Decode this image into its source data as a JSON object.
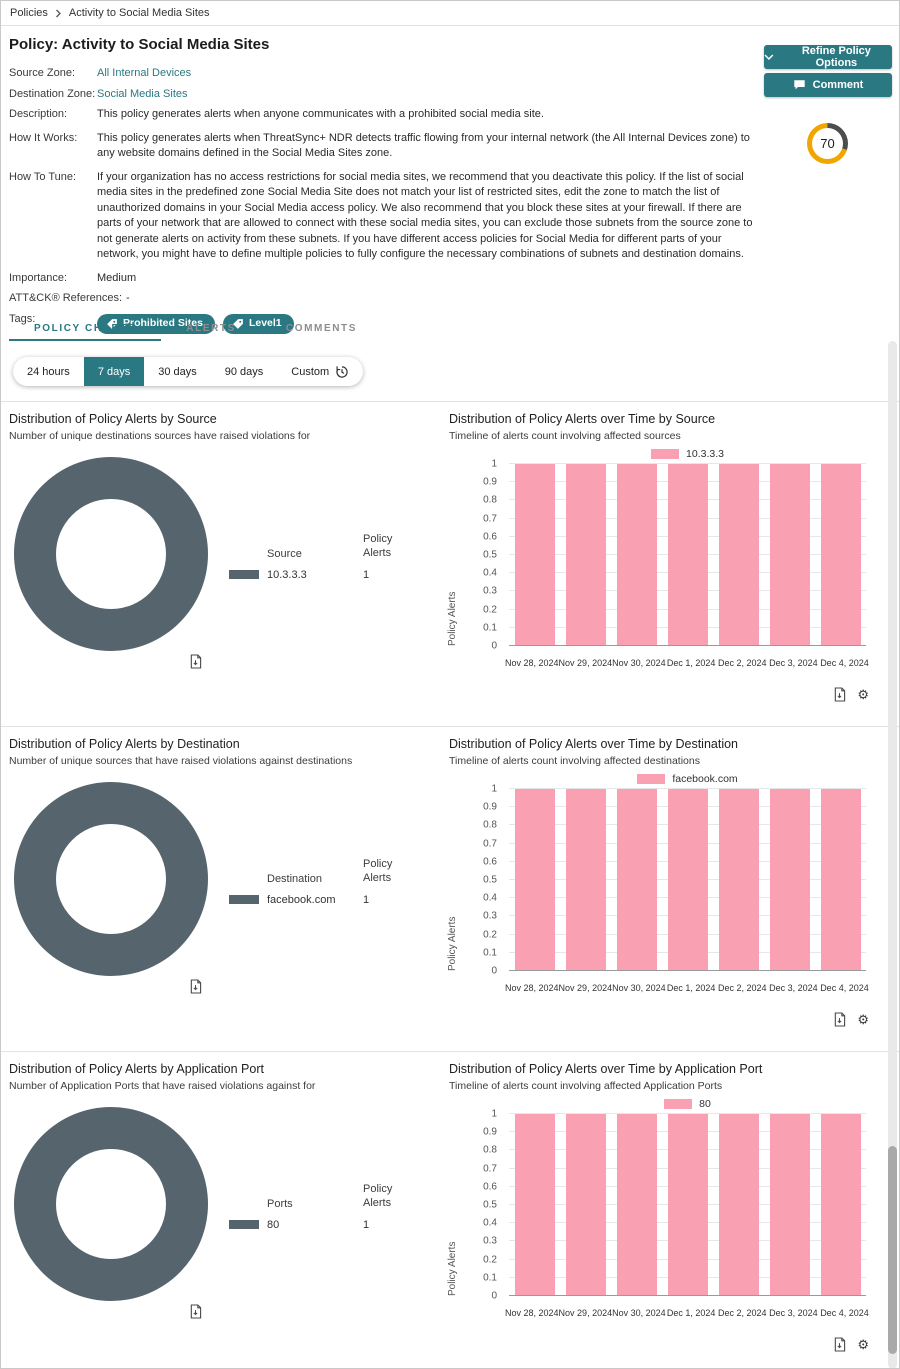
{
  "breadcrumb": {
    "root": "Policies",
    "current": "Activity to Social Media Sites"
  },
  "header": {
    "title": "Policy: Activity to Social Media Sites",
    "buttons": {
      "refine": "Refine Policy Options",
      "comment": "Comment"
    },
    "score": "70",
    "score_percent": 70,
    "details": {
      "source_zone": {
        "label": "Source Zone:",
        "value": "All Internal Devices"
      },
      "destination_zone": {
        "label": "Destination Zone:",
        "value": "Social Media Sites"
      },
      "description": {
        "label": "Description:",
        "value": "This policy generates alerts when anyone communicates with a prohibited social media site."
      },
      "how_it_works": {
        "label": "How It Works:",
        "value": "This policy generates alerts when ThreatSync+ NDR detects traffic flowing from your internal network (the All Internal Devices zone) to any website domains defined in the Social Media Sites zone."
      },
      "how_to_tune": {
        "label": "How To Tune:",
        "value": "If your organization has no access restrictions for social media sites, we recommend that you deactivate this policy. If the list of social media sites in the predefined zone Social Media Site does not match your list of restricted sites, edit the zone to match the list of unauthorized domains in your Social Media access policy. We also recommend that you block these sites at your firewall. If there are parts of your network that are allowed to connect with these social media sites, you can exclude those subnets from the source zone to not generate alerts on activity from these subnets. If you have different access policies for Social Media for different parts of your network, you might have to define multiple policies to fully configure the necessary combinations of subnets and destination domains."
      },
      "importance": {
        "label": "Importance:",
        "value": "Medium"
      },
      "attack_refs": {
        "label": "ATT&CK® References:",
        "value": "-"
      }
    },
    "tags_label": "Tags:",
    "tags": [
      "Prohibited Sites",
      "Level1"
    ]
  },
  "tabs": [
    {
      "label": "POLICY CHARTS",
      "active": true
    },
    {
      "label": "ALERTS",
      "active": false
    },
    {
      "label": "COMMENTS",
      "active": false
    }
  ],
  "time_range": {
    "options": [
      "24 hours",
      "7 days",
      "30 days",
      "90 days",
      "Custom"
    ],
    "selected": "7 days"
  },
  "colors": {
    "teal": "#2A7882",
    "donut": "#55646D",
    "bar_pink": "#F9A1B3",
    "gauge_amber": "#F0A500",
    "gauge_gray": "#4D4D4D"
  },
  "chart_data": [
    {
      "type": "pie",
      "title": "Distribution of Policy Alerts by Source",
      "subtitle": "Number of unique destinations sources have raised violations for",
      "legend_header": "Source",
      "value_header": "Policy Alerts",
      "slices": [
        {
          "label": "10.3.3.3",
          "value": 1
        }
      ]
    },
    {
      "type": "bar",
      "title": "Distribution of Policy Alerts over Time by Source",
      "subtitle": "Timeline of alerts count involving affected sources",
      "legend": "10.3.3.3",
      "ylabel": "Policy Alerts",
      "ylim": [
        0,
        1
      ],
      "ytick_step": 0.1,
      "categories": [
        "Nov 28, 2024",
        "Nov 29, 2024",
        "Nov 30, 2024",
        "Dec 1, 2024",
        "Dec 2, 2024",
        "Dec 3, 2024",
        "Dec 4, 2024"
      ],
      "values": [
        1,
        1,
        1,
        1,
        1,
        1,
        1
      ]
    },
    {
      "type": "pie",
      "title": "Distribution of Policy Alerts by Destination",
      "subtitle": "Number of unique sources that have raised violations against destinations",
      "legend_header": "Destination",
      "value_header": "Policy Alerts",
      "slices": [
        {
          "label": "facebook.com",
          "value": 1
        }
      ]
    },
    {
      "type": "bar",
      "title": "Distribution of Policy Alerts over Time by Destination",
      "subtitle": "Timeline of alerts count involving affected destinations",
      "legend": "facebook.com",
      "ylabel": "Policy Alerts",
      "ylim": [
        0,
        1
      ],
      "ytick_step": 0.1,
      "categories": [
        "Nov 28, 2024",
        "Nov 29, 2024",
        "Nov 30, 2024",
        "Dec 1, 2024",
        "Dec 2, 2024",
        "Dec 3, 2024",
        "Dec 4, 2024"
      ],
      "values": [
        1,
        1,
        1,
        1,
        1,
        1,
        1
      ]
    },
    {
      "type": "pie",
      "title": "Distribution of Policy Alerts by Application Port",
      "subtitle": "Number of Application Ports that have raised violations against for",
      "legend_header": "Ports",
      "value_header": "Policy Alerts",
      "slices": [
        {
          "label": "80",
          "value": 1
        }
      ]
    },
    {
      "type": "bar",
      "title": "Distribution of Policy Alerts over Time by Application Port",
      "subtitle": "Timeline of alerts count involving affected Application Ports",
      "legend": "80",
      "ylabel": "Policy Alerts",
      "ylim": [
        0,
        1
      ],
      "ytick_step": 0.1,
      "categories": [
        "Nov 28, 2024",
        "Nov 29, 2024",
        "Nov 30, 2024",
        "Dec 1, 2024",
        "Dec 2, 2024",
        "Dec 3, 2024",
        "Dec 4, 2024"
      ],
      "values": [
        1,
        1,
        1,
        1,
        1,
        1,
        1
      ]
    }
  ]
}
